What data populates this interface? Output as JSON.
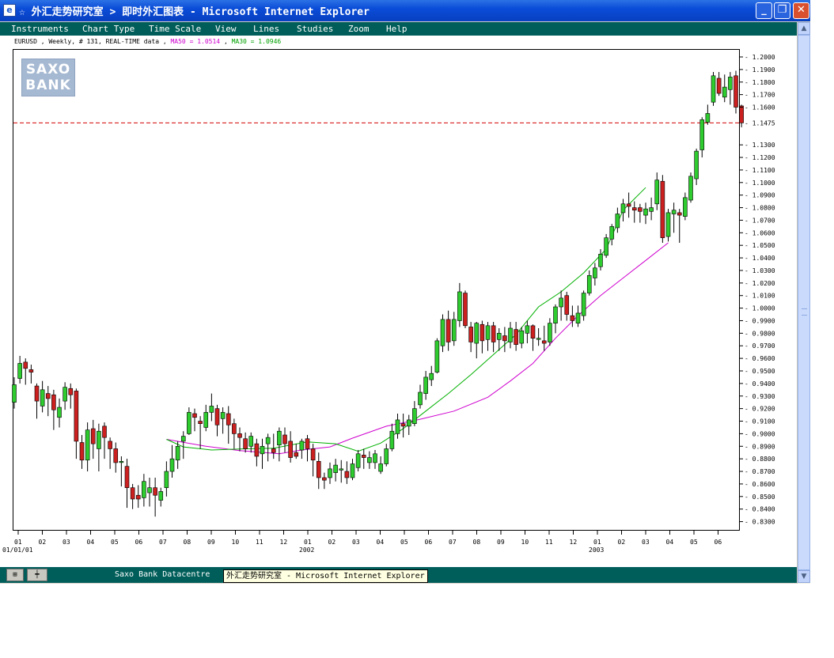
{
  "window": {
    "title": "☆ 外汇走势研究室 > 即时外汇图表 - Microsoft Internet Explorer",
    "icon": "star-icon",
    "buttons": {
      "minimize": "_",
      "maximize": "❐",
      "close": "✕"
    }
  },
  "menu": [
    "Instruments",
    "Chart Type",
    "Time Scale",
    "View",
    "Lines",
    "Studies",
    "Zoom",
    "Help"
  ],
  "chart_info": {
    "prefix": "EURUSD , Weekly, # 131, REAL-TIME data ,",
    "ma50": "MA50 = 1.0514",
    "separator": ",",
    "ma30": "MA30 = 1.0946"
  },
  "logo": {
    "line1": "SAXO",
    "line2": "BANK"
  },
  "statusbar": {
    "btn1": "⊞",
    "btn2": "┿",
    "label": "Saxo Bank Datacentre",
    "tooltip": "外汇走势研究室 - Microsoft Internet Explorer"
  },
  "colors": {
    "up_candle": "#2ecc2e",
    "down_candle": "#cc2020",
    "ma50": "#ce00ce",
    "ma30": "#00b000",
    "current_price_line": "#d40000",
    "menubar": "#005e5a"
  },
  "chart_data": {
    "type": "candlestick",
    "instrument": "EURUSD",
    "timeframe": "Weekly",
    "ylim": [
      0.83,
      1.2
    ],
    "y_ticks": [
      "1.2000",
      "1.1900",
      "1.1800",
      "1.1700",
      "1.1600",
      "1.1300",
      "1.1200",
      "1.1100",
      "1.1000",
      "1.0900",
      "1.0800",
      "1.0700",
      "1.0600",
      "1.0500",
      "1.0400",
      "1.0300",
      "1.0200",
      "1.0100",
      "1.0000",
      "0.9900",
      "0.9800",
      "0.9700",
      "0.9600",
      "0.9500",
      "0.9400",
      "0.9300",
      "0.9200",
      "0.9100",
      "0.9000",
      "0.8900",
      "0.8800",
      "0.8700",
      "0.8600",
      "0.8500",
      "0.8400",
      "0.8300"
    ],
    "current_price": "1.1475",
    "x_labels": [
      "01",
      "02",
      "03",
      "04",
      "05",
      "06",
      "07",
      "08",
      "09",
      "10",
      "11",
      "12",
      "01",
      "02",
      "03",
      "04",
      "05",
      "06",
      "07",
      "08",
      "09",
      "10",
      "11",
      "12",
      "01",
      "02",
      "03",
      "04",
      "05",
      "06"
    ],
    "date_labels": {
      "start": "01/01/01",
      "y2002": "2002",
      "y2003": "2003"
    },
    "ma_anchors": {
      "ma50": [
        [
          27,
          0.8955
        ],
        [
          34,
          0.89
        ],
        [
          40,
          0.8865
        ],
        [
          47,
          0.884
        ],
        [
          51,
          0.887
        ],
        [
          56,
          0.8895
        ],
        [
          60,
          0.8965
        ],
        [
          66,
          0.906
        ],
        [
          72,
          0.9115
        ],
        [
          78,
          0.918
        ],
        [
          84,
          0.929
        ],
        [
          88,
          0.942
        ],
        [
          92,
          0.956
        ],
        [
          96,
          0.976
        ],
        [
          100,
          0.994
        ],
        [
          104,
          1.01
        ],
        [
          108,
          1.024
        ],
        [
          112,
          1.038
        ],
        [
          116,
          1.052
        ]
      ],
      "ma30": [
        [
          27,
          0.8955
        ],
        [
          30,
          0.8895
        ],
        [
          35,
          0.887
        ],
        [
          41,
          0.888
        ],
        [
          46,
          0.8885
        ],
        [
          52,
          0.8935
        ],
        [
          57,
          0.892
        ],
        [
          61,
          0.886
        ],
        [
          65,
          0.8925
        ],
        [
          69,
          0.904
        ],
        [
          73,
          0.918
        ],
        [
          77,
          0.932
        ],
        [
          81,
          0.947
        ],
        [
          85,
          0.963
        ],
        [
          89,
          0.979
        ],
        [
          93,
          1.001
        ],
        [
          97,
          1.013
        ],
        [
          101,
          1.028
        ],
        [
          105,
          1.047
        ],
        [
          108,
          1.078
        ],
        [
          112,
          1.096
        ]
      ]
    },
    "candles": [
      [
        0.925,
        0.939,
        0.945,
        0.92
      ],
      [
        0.944,
        0.956,
        0.962,
        0.94
      ],
      [
        0.957,
        0.952,
        0.96,
        0.939
      ],
      [
        0.951,
        0.949,
        0.955,
        0.94
      ],
      [
        0.938,
        0.926,
        0.94,
        0.912
      ],
      [
        0.922,
        0.935,
        0.942,
        0.917
      ],
      [
        0.932,
        0.928,
        0.938,
        0.914
      ],
      [
        0.931,
        0.919,
        0.935,
        0.903
      ],
      [
        0.913,
        0.921,
        0.928,
        0.905
      ],
      [
        0.926,
        0.937,
        0.941,
        0.919
      ],
      [
        0.936,
        0.931,
        0.94,
        0.92
      ],
      [
        0.934,
        0.894,
        0.936,
        0.88
      ],
      [
        0.893,
        0.879,
        0.899,
        0.872
      ],
      [
        0.879,
        0.903,
        0.909,
        0.87
      ],
      [
        0.904,
        0.892,
        0.911,
        0.88
      ],
      [
        0.888,
        0.902,
        0.908,
        0.87
      ],
      [
        0.906,
        0.897,
        0.909,
        0.88
      ],
      [
        0.894,
        0.888,
        0.897,
        0.872
      ],
      [
        0.888,
        0.877,
        0.893,
        0.869
      ],
      [
        0.878,
        0.878,
        0.882,
        0.858
      ],
      [
        0.874,
        0.857,
        0.88,
        0.841
      ],
      [
        0.857,
        0.848,
        0.86,
        0.84
      ],
      [
        0.851,
        0.848,
        0.859,
        0.841
      ],
      [
        0.849,
        0.862,
        0.868,
        0.842
      ],
      [
        0.853,
        0.857,
        0.865,
        0.842
      ],
      [
        0.857,
        0.851,
        0.865,
        0.834
      ],
      [
        0.847,
        0.854,
        0.857,
        0.842
      ],
      [
        0.857,
        0.87,
        0.878,
        0.85
      ],
      [
        0.87,
        0.88,
        0.891,
        0.865
      ],
      [
        0.879,
        0.89,
        0.894,
        0.872
      ],
      [
        0.894,
        0.898,
        0.902,
        0.88
      ],
      [
        0.9,
        0.917,
        0.921,
        0.899
      ],
      [
        0.916,
        0.913,
        0.92,
        0.902
      ],
      [
        0.91,
        0.908,
        0.914,
        0.888
      ],
      [
        0.905,
        0.917,
        0.923,
        0.902
      ],
      [
        0.917,
        0.922,
        0.932,
        0.91
      ],
      [
        0.92,
        0.907,
        0.923,
        0.898
      ],
      [
        0.912,
        0.917,
        0.921,
        0.9
      ],
      [
        0.916,
        0.907,
        0.922,
        0.892
      ],
      [
        0.908,
        0.9,
        0.912,
        0.888
      ],
      [
        0.9,
        0.897,
        0.905,
        0.886
      ],
      [
        0.896,
        0.888,
        0.901,
        0.885
      ],
      [
        0.89,
        0.898,
        0.901,
        0.885
      ],
      [
        0.892,
        0.882,
        0.896,
        0.874
      ],
      [
        0.884,
        0.89,
        0.896,
        0.872
      ],
      [
        0.892,
        0.897,
        0.9,
        0.878
      ],
      [
        0.888,
        0.885,
        0.9,
        0.88
      ],
      [
        0.891,
        0.902,
        0.905,
        0.878
      ],
      [
        0.899,
        0.892,
        0.905,
        0.885
      ],
      [
        0.894,
        0.881,
        0.902,
        0.877
      ],
      [
        0.885,
        0.882,
        0.892,
        0.88
      ],
      [
        0.887,
        0.894,
        0.896,
        0.88
      ],
      [
        0.896,
        0.888,
        0.899,
        0.878
      ],
      [
        0.888,
        0.879,
        0.892,
        0.866
      ],
      [
        0.878,
        0.865,
        0.885,
        0.856
      ],
      [
        0.865,
        0.863,
        0.869,
        0.856
      ],
      [
        0.865,
        0.872,
        0.877,
        0.86
      ],
      [
        0.869,
        0.875,
        0.88,
        0.862
      ],
      [
        0.872,
        0.872,
        0.879,
        0.861
      ],
      [
        0.87,
        0.865,
        0.878,
        0.86
      ],
      [
        0.865,
        0.876,
        0.88,
        0.863
      ],
      [
        0.873,
        0.884,
        0.887,
        0.87
      ],
      [
        0.883,
        0.881,
        0.888,
        0.872
      ],
      [
        0.877,
        0.881,
        0.886,
        0.872
      ],
      [
        0.877,
        0.884,
        0.887,
        0.872
      ],
      [
        0.87,
        0.876,
        0.882,
        0.868
      ],
      [
        0.876,
        0.888,
        0.892,
        0.874
      ],
      [
        0.888,
        0.902,
        0.908,
        0.886
      ],
      [
        0.9,
        0.911,
        0.916,
        0.896
      ],
      [
        0.908,
        0.906,
        0.916,
        0.897
      ],
      [
        0.906,
        0.911,
        0.915,
        0.899
      ],
      [
        0.908,
        0.92,
        0.926,
        0.906
      ],
      [
        0.923,
        0.933,
        0.939,
        0.92
      ],
      [
        0.932,
        0.945,
        0.95,
        0.927
      ],
      [
        0.943,
        0.948,
        0.954,
        0.938
      ],
      [
        0.949,
        0.974,
        0.976,
        0.948
      ],
      [
        0.97,
        0.991,
        0.995,
        0.965
      ],
      [
        0.991,
        0.973,
        0.998,
        0.966
      ],
      [
        0.974,
        0.991,
        0.997,
        0.97
      ],
      [
        0.99,
        1.013,
        1.02,
        0.985
      ],
      [
        1.012,
        0.986,
        1.014,
        0.984
      ],
      [
        0.985,
        0.973,
        0.989,
        0.965
      ],
      [
        0.972,
        0.988,
        0.989,
        0.96
      ],
      [
        0.987,
        0.974,
        0.99,
        0.964
      ],
      [
        0.975,
        0.986,
        0.989,
        0.966
      ],
      [
        0.986,
        0.973,
        0.989,
        0.965
      ],
      [
        0.975,
        0.98,
        0.984,
        0.966
      ],
      [
        0.978,
        0.974,
        0.985,
        0.965
      ],
      [
        0.973,
        0.984,
        0.989,
        0.968
      ],
      [
        0.983,
        0.971,
        0.989,
        0.966
      ],
      [
        0.972,
        0.982,
        0.985,
        0.968
      ],
      [
        0.98,
        0.986,
        0.99,
        0.972
      ],
      [
        0.986,
        0.976,
        0.987,
        0.966
      ],
      [
        0.976,
        0.976,
        0.984,
        0.97
      ],
      [
        0.974,
        0.972,
        0.986,
        0.966
      ],
      [
        0.973,
        0.988,
        0.992,
        0.97
      ],
      [
        0.988,
        1.001,
        1.003,
        0.98
      ],
      [
        1.001,
        1.008,
        1.014,
        0.99
      ],
      [
        1.01,
        0.995,
        1.013,
        0.99
      ],
      [
        0.994,
        0.99,
        1.002,
        0.985
      ],
      [
        0.988,
        0.996,
        1.002,
        0.985
      ],
      [
        0.994,
        1.012,
        1.014,
        0.99
      ],
      [
        1.012,
        1.026,
        1.03,
        1.01
      ],
      [
        1.024,
        1.032,
        1.036,
        1.018
      ],
      [
        1.033,
        1.043,
        1.047,
        1.03
      ],
      [
        1.042,
        1.056,
        1.059,
        1.04
      ],
      [
        1.055,
        1.065,
        1.067,
        1.05
      ],
      [
        1.064,
        1.075,
        1.08,
        1.06
      ],
      [
        1.076,
        1.083,
        1.087,
        1.069
      ],
      [
        1.083,
        1.081,
        1.092,
        1.072
      ],
      [
        1.08,
        1.078,
        1.085,
        1.068
      ],
      [
        1.08,
        1.077,
        1.083,
        1.068
      ],
      [
        1.074,
        1.079,
        1.084,
        1.067
      ],
      [
        1.077,
        1.08,
        1.088,
        1.07
      ],
      [
        1.083,
        1.102,
        1.108,
        1.078
      ],
      [
        1.101,
        1.056,
        1.106,
        1.052
      ],
      [
        1.057,
        1.076,
        1.079,
        1.053
      ],
      [
        1.075,
        1.078,
        1.084,
        1.06
      ],
      [
        1.076,
        1.074,
        1.079,
        1.052
      ],
      [
        1.073,
        1.088,
        1.092,
        1.07
      ],
      [
        1.086,
        1.105,
        1.108,
        1.084
      ],
      [
        1.103,
        1.125,
        1.127,
        1.098
      ],
      [
        1.126,
        1.15,
        1.152,
        1.12
      ],
      [
        1.148,
        1.155,
        1.162,
        1.146
      ],
      [
        1.164,
        1.185,
        1.188,
        1.161
      ],
      [
        1.183,
        1.171,
        1.188,
        1.169
      ],
      [
        1.168,
        1.176,
        1.186,
        1.164
      ],
      [
        1.174,
        1.184,
        1.188,
        1.162
      ],
      [
        1.185,
        1.16,
        1.189,
        1.155
      ],
      [
        1.161,
        1.1475,
        1.162,
        1.144
      ]
    ]
  }
}
